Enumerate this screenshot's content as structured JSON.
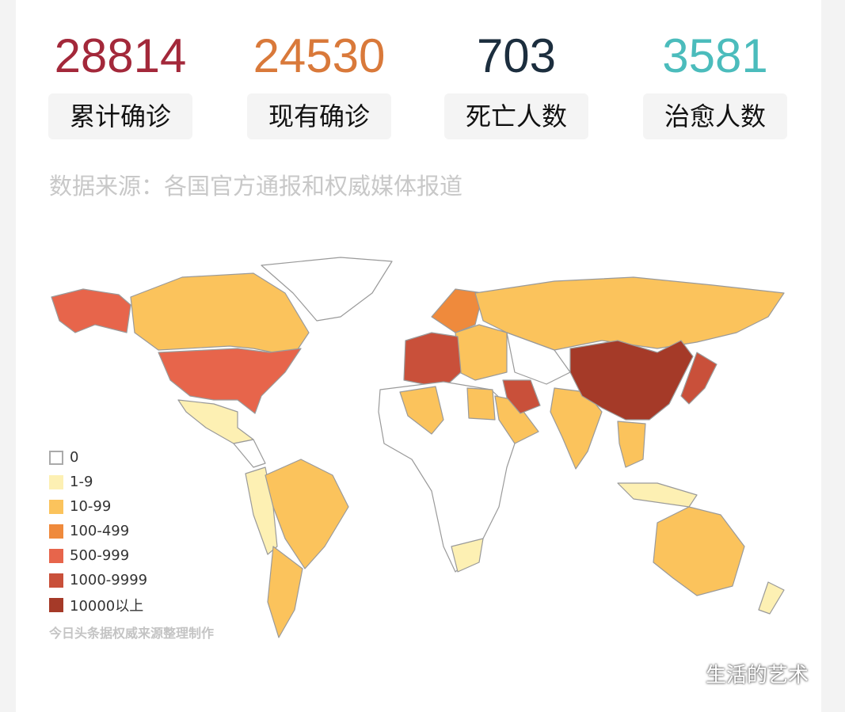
{
  "stats": [
    {
      "value": "28814",
      "label": "累计确诊",
      "color": "#a3283a"
    },
    {
      "value": "24530",
      "label": "现有确诊",
      "color": "#d9793a"
    },
    {
      "value": "703",
      "label": "死亡人数",
      "color": "#1c2e3e"
    },
    {
      "value": "3581",
      "label": "治愈人数",
      "color": "#4bbcbc"
    }
  ],
  "source": "数据来源：各国官方通报和权威媒体报道",
  "legend": [
    {
      "label": "0",
      "color": "#ffffff"
    },
    {
      "label": "1-9",
      "color": "#fdf0b3"
    },
    {
      "label": "10-99",
      "color": "#fbc35c"
    },
    {
      "label": "100-499",
      "color": "#ef8a3c"
    },
    {
      "label": "500-999",
      "color": "#e7654b"
    },
    {
      "label": "1000-9999",
      "color": "#c9503a"
    },
    {
      "label": "10000以上",
      "color": "#a53a28"
    }
  ],
  "credit": "今日头条据权威来源整理制作",
  "watermark": "生活的艺术",
  "watermark_icon": "wechat-icon"
}
